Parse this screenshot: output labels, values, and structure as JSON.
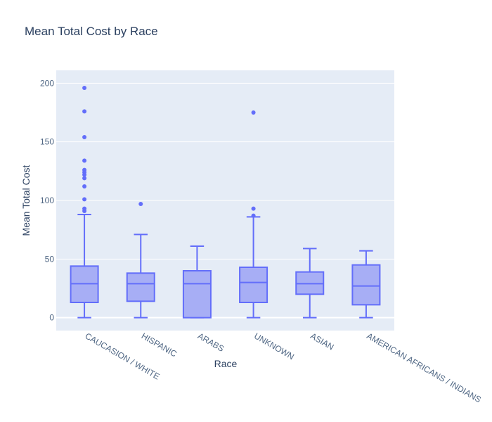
{
  "chart_data": {
    "type": "box",
    "title": "Mean Total Cost by Race",
    "xlabel": "Race",
    "ylabel": "Mean Total Cost",
    "ylim": [
      -11,
      211
    ],
    "yticks": [
      0,
      50,
      100,
      150,
      200
    ],
    "grid": true,
    "colors": {
      "plot_bg": "#e5ecf6",
      "box_line": "#636efa",
      "box_fill": "#a7aef5",
      "grid": "#ffffff",
      "text": "#2a3f5f",
      "tick": "#506784"
    },
    "categories": [
      "CAUCASION / WHITE",
      "HISPANIC",
      "ARABS",
      "UNKNOWN",
      "ASIAN",
      "AMERICAN AFRICANS / INDIANS"
    ],
    "boxes": [
      {
        "category": "CAUCASION / WHITE",
        "min": 0,
        "q1": 13,
        "median": 29,
        "q3": 44,
        "max": 88,
        "outliers": [
          196,
          176,
          154,
          134,
          126,
          124,
          122,
          119,
          112,
          101,
          93,
          91
        ]
      },
      {
        "category": "HISPANIC",
        "min": 0,
        "q1": 14,
        "median": 29,
        "q3": 38,
        "max": 71,
        "outliers": [
          97
        ]
      },
      {
        "category": "ARABS",
        "min": 0,
        "q1": 0,
        "median": 29,
        "q3": 40,
        "max": 61,
        "outliers": []
      },
      {
        "category": "UNKNOWN",
        "min": 0,
        "q1": 13,
        "median": 30,
        "q3": 43,
        "max": 86,
        "outliers": [
          175,
          93,
          87
        ]
      },
      {
        "category": "ASIAN",
        "min": 0,
        "q1": 20,
        "median": 29,
        "q3": 39,
        "max": 59,
        "outliers": []
      },
      {
        "category": "AMERICAN AFRICANS / INDIANS",
        "min": 0,
        "q1": 11,
        "median": 27,
        "q3": 45,
        "max": 57,
        "outliers": []
      }
    ]
  }
}
